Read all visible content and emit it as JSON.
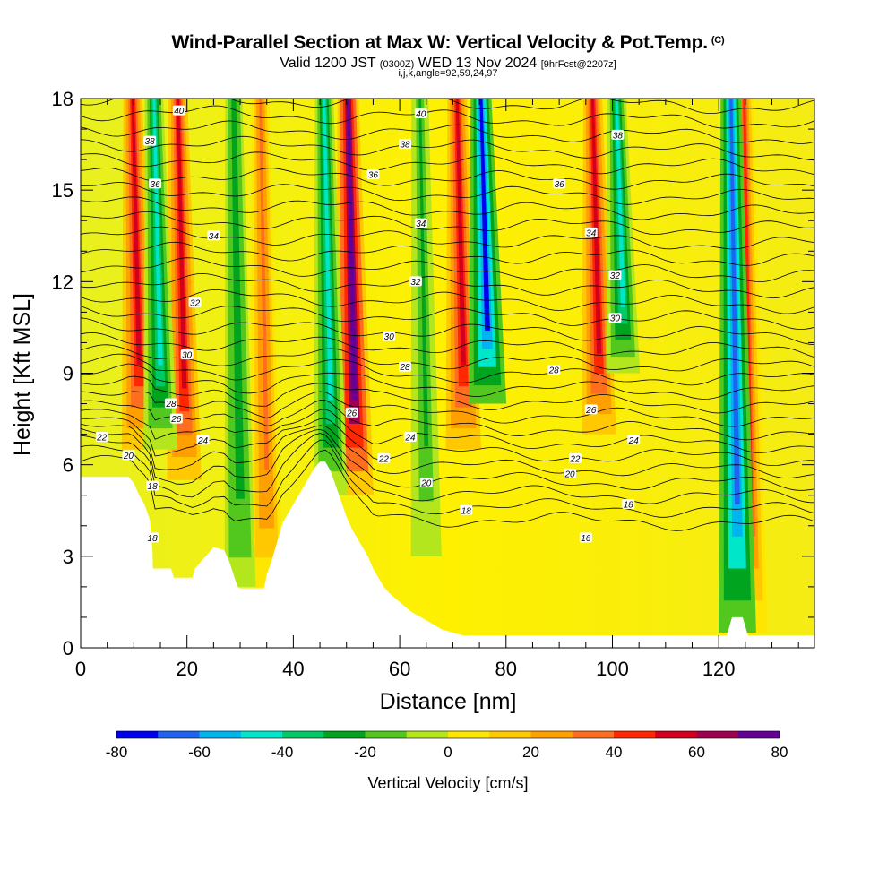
{
  "title": {
    "main": "Wind-Parallel Section at Max W: Vertical Velocity & Pot.Temp.",
    "main_suffix": "(C)",
    "valid_prefix": "Valid 1200 JST",
    "valid_utc": "(0300Z)",
    "valid_date": "WED 13 Nov 2024",
    "forecast": "[9hrFcst@2207z]",
    "indices": "i,j,k,angle=92,59,24,97"
  },
  "chart_data": {
    "type": "heatmap",
    "xlabel": "Distance [nm]",
    "ylabel": "Height [Kft MSL]",
    "xlim": [
      0,
      138
    ],
    "ylim": [
      0,
      18
    ],
    "x_ticks": [
      "0",
      "20",
      "40",
      "60",
      "80",
      "100",
      "120"
    ],
    "y_ticks": [
      "0",
      "3",
      "6",
      "9",
      "12",
      "15",
      "18"
    ],
    "colorbar": {
      "label": "Vertical Velocity [cm/s]",
      "ticks": [
        "-80",
        "-60",
        "-40",
        "-20",
        "0",
        "20",
        "40",
        "60",
        "80"
      ],
      "range": [
        -80,
        80
      ],
      "colors": [
        "#0000f0",
        "#1e64f0",
        "#00b4f0",
        "#00e6c8",
        "#00c864",
        "#00a41e",
        "#52c81e",
        "#b4e61e",
        "#ffe600",
        "#ffc800",
        "#ffa000",
        "#ff6e1e",
        "#ff2800",
        "#d2001e",
        "#a00050",
        "#640096"
      ]
    },
    "updraft_bands": [
      {
        "x": 11,
        "top": 6.5,
        "peak": 50
      },
      {
        "x": 19.5,
        "top": 5.5,
        "peak": 50
      },
      {
        "x": 35,
        "top": 2.0,
        "peak": 35
      },
      {
        "x": 51.5,
        "top": 5.0,
        "peak": 75
      },
      {
        "x": 72,
        "top": 6.5,
        "peak": 55
      },
      {
        "x": 97.5,
        "top": 7.0,
        "peak": 50
      },
      {
        "x": 126,
        "top": 0.5,
        "peak": 45
      }
    ],
    "downdraft_bands": [
      {
        "x": 15,
        "top": 6.5,
        "peak": -45
      },
      {
        "x": 30,
        "top": 2.0,
        "peak": -28
      },
      {
        "x": 47,
        "top": 5.0,
        "peak": -45
      },
      {
        "x": 65,
        "top": 3.0,
        "peak": -25
      },
      {
        "x": 76.5,
        "top": 8.0,
        "peak": -72
      },
      {
        "x": 102,
        "top": 9.0,
        "peak": -45
      },
      {
        "x": 123.5,
        "top": 0.5,
        "peak": -70
      }
    ],
    "terrain_kft": [
      [
        0,
        5.6
      ],
      [
        2,
        5.6
      ],
      [
        6,
        5.6
      ],
      [
        9,
        5.6
      ],
      [
        10,
        5.4
      ],
      [
        11,
        5.0
      ],
      [
        12,
        4.7
      ],
      [
        13,
        4.2
      ],
      [
        13.5,
        3.2
      ],
      [
        13.6,
        2.6
      ],
      [
        17,
        2.6
      ],
      [
        17.5,
        2.3
      ],
      [
        21,
        2.3
      ],
      [
        21.5,
        2.6
      ],
      [
        23,
        2.9
      ],
      [
        25,
        3.3
      ],
      [
        27,
        3.2
      ],
      [
        28,
        2.8
      ],
      [
        29.5,
        2.0
      ],
      [
        30,
        1.95
      ],
      [
        34.5,
        1.95
      ],
      [
        35,
        2.4
      ],
      [
        36,
        2.9
      ],
      [
        37,
        3.5
      ],
      [
        38,
        4.1
      ],
      [
        40,
        4.7
      ],
      [
        42,
        5.3
      ],
      [
        44,
        5.9
      ],
      [
        45,
        6.1
      ],
      [
        46,
        6.1
      ],
      [
        47,
        5.8
      ],
      [
        48,
        5.3
      ],
      [
        49,
        4.8
      ],
      [
        50,
        4.3
      ],
      [
        51,
        3.9
      ],
      [
        52,
        3.6
      ],
      [
        53,
        3.3
      ],
      [
        54,
        3.0
      ],
      [
        55,
        2.6
      ],
      [
        57,
        2.0
      ],
      [
        58,
        1.8
      ],
      [
        60,
        1.5
      ],
      [
        62,
        1.2
      ],
      [
        64,
        1.0
      ],
      [
        66,
        0.8
      ],
      [
        68,
        0.6
      ],
      [
        70,
        0.5
      ],
      [
        72,
        0.4
      ],
      [
        121.5,
        0.4
      ],
      [
        122.5,
        1.0
      ],
      [
        124.5,
        1.0
      ],
      [
        125.5,
        0.4
      ],
      [
        138,
        0.4
      ]
    ],
    "theta_contour_levels": [
      16,
      18,
      20,
      22,
      24,
      26,
      28,
      30,
      32,
      34,
      36,
      38,
      40
    ],
    "theta_contour_labels": [
      {
        "text": "40",
        "x": 18.5,
        "y": 17.6
      },
      {
        "text": "40",
        "x": 64,
        "y": 17.5
      },
      {
        "text": "38",
        "x": 13,
        "y": 16.6
      },
      {
        "text": "38",
        "x": 61,
        "y": 16.5
      },
      {
        "text": "38",
        "x": 101,
        "y": 16.8
      },
      {
        "text": "36",
        "x": 14,
        "y": 15.2
      },
      {
        "text": "36",
        "x": 55,
        "y": 15.5
      },
      {
        "text": "36",
        "x": 90,
        "y": 15.2
      },
      {
        "text": "34",
        "x": 25,
        "y": 13.5
      },
      {
        "text": "34",
        "x": 64,
        "y": 13.9
      },
      {
        "text": "34",
        "x": 96,
        "y": 13.6
      },
      {
        "text": "32",
        "x": 21.5,
        "y": 11.3
      },
      {
        "text": "32",
        "x": 63,
        "y": 12.0
      },
      {
        "text": "32",
        "x": 100.5,
        "y": 12.2
      },
      {
        "text": "30",
        "x": 20,
        "y": 9.6
      },
      {
        "text": "30",
        "x": 58,
        "y": 10.2
      },
      {
        "text": "30",
        "x": 100.5,
        "y": 10.8
      },
      {
        "text": "28",
        "x": 17,
        "y": 8.0
      },
      {
        "text": "28",
        "x": 61,
        "y": 9.2
      },
      {
        "text": "28",
        "x": 89,
        "y": 9.1
      },
      {
        "text": "26",
        "x": 18,
        "y": 7.5
      },
      {
        "text": "26",
        "x": 51,
        "y": 7.7
      },
      {
        "text": "26",
        "x": 96,
        "y": 7.8
      },
      {
        "text": "24",
        "x": 23,
        "y": 6.8
      },
      {
        "text": "24",
        "x": 62,
        "y": 6.9
      },
      {
        "text": "24",
        "x": 104,
        "y": 6.8
      },
      {
        "text": "22",
        "x": 4,
        "y": 6.9
      },
      {
        "text": "22",
        "x": 57,
        "y": 6.2
      },
      {
        "text": "22",
        "x": 93,
        "y": 6.2
      },
      {
        "text": "20",
        "x": 9,
        "y": 6.3
      },
      {
        "text": "20",
        "x": 65,
        "y": 5.4
      },
      {
        "text": "20",
        "x": 92,
        "y": 5.7
      },
      {
        "text": "18",
        "x": 13.5,
        "y": 5.3
      },
      {
        "text": "18",
        "x": 72.5,
        "y": 4.5
      },
      {
        "text": "18",
        "x": 103,
        "y": 4.7
      },
      {
        "text": "18",
        "x": 13.5,
        "y": 3.6
      },
      {
        "text": "16",
        "x": 95,
        "y": 3.6
      }
    ]
  }
}
